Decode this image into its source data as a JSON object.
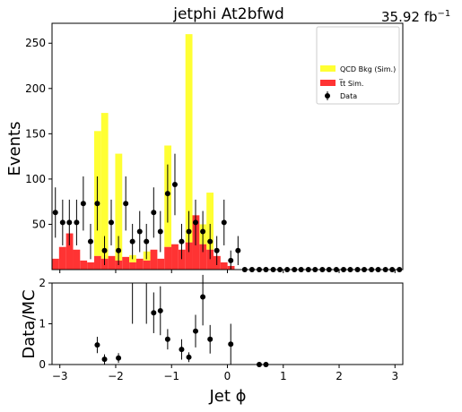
{
  "chart_data": {
    "type": "histogram",
    "title": "jetphi  At2bfwd",
    "luminosity": "35.92 fb",
    "luminosity_exponent": "−1",
    "xlabel": "Jet ϕ",
    "main": {
      "ylabel": "Events",
      "xlim": [
        -3.14,
        3.14
      ],
      "ylim": [
        0,
        272
      ],
      "yticks": [
        50,
        100,
        150,
        200,
        250
      ],
      "xticks": [
        -3,
        -2,
        -1,
        0,
        1,
        2,
        3
      ]
    },
    "ratio": {
      "ylabel": "Data/MC",
      "ylim": [
        0,
        2
      ],
      "yticks": [
        0,
        1,
        2
      ]
    },
    "bins": {
      "start": -3.14,
      "width": 0.1257,
      "count": 50
    },
    "legend": {
      "position": "top-right",
      "entries": [
        {
          "label": "QCD Bkg (Sim.)",
          "color": "#ffff33",
          "kind": "fill"
        },
        {
          "label": "t̅t Sim.",
          "color": "#ff3333",
          "kind": "fill"
        },
        {
          "label": "Data",
          "color": "#000000",
          "kind": "marker"
        }
      ]
    },
    "series": [
      {
        "name": "t̅t Sim.",
        "color": "#ff3333",
        "values": [
          12,
          25,
          40,
          22,
          10,
          8,
          15,
          12,
          15,
          10,
          14,
          8,
          12,
          10,
          22,
          12,
          25,
          28,
          22,
          30,
          60,
          28,
          22,
          15,
          8,
          4,
          0,
          0,
          0,
          0,
          0,
          0,
          0,
          0,
          0,
          0,
          0,
          0,
          0,
          0,
          0,
          0,
          0,
          0,
          0,
          0,
          0,
          0,
          0,
          0
        ]
      },
      {
        "name": "QCD Bkg (Sim.)",
        "color": "#ffff33",
        "values": [
          0,
          0,
          0,
          0,
          0,
          0,
          138,
          161,
          0,
          118,
          0,
          8,
          0,
          10,
          0,
          0,
          112,
          0,
          0,
          230,
          0,
          22,
          63,
          0,
          0,
          0,
          0,
          0,
          0,
          0,
          0,
          0,
          0,
          0,
          0,
          0,
          0,
          0,
          0,
          0,
          0,
          0,
          0,
          0,
          0,
          0,
          0,
          0,
          0,
          0
        ]
      }
    ],
    "data": {
      "name": "Data",
      "x": [
        -3.08,
        -2.95,
        -2.83,
        -2.7,
        -2.58,
        -2.45,
        -2.33,
        -2.2,
        -2.08,
        -1.95,
        -1.82,
        -1.7,
        -1.57,
        -1.45,
        -1.32,
        -1.2,
        -1.07,
        -0.94,
        -0.82,
        -0.69,
        -0.57,
        -0.44,
        -0.31,
        -0.19,
        -0.06,
        0.06,
        0.19,
        0.31,
        0.44,
        0.57,
        0.69,
        0.82,
        0.94,
        1.07,
        1.2,
        1.32,
        1.45,
        1.57,
        1.7,
        1.82,
        1.95,
        2.08,
        2.2,
        2.33,
        2.45,
        2.58,
        2.7,
        2.83,
        2.95,
        3.08
      ],
      "y": [
        63,
        52,
        52,
        52,
        73,
        31,
        73,
        21,
        52,
        21,
        73,
        31,
        42,
        31,
        63,
        42,
        84,
        94,
        31,
        42,
        52,
        42,
        31,
        21,
        52,
        10,
        21,
        0,
        0,
        0,
        0,
        0,
        0,
        0,
        0,
        0,
        0,
        0,
        0,
        0,
        0,
        0,
        0,
        0,
        0,
        0,
        0,
        0,
        0,
        0
      ]
    },
    "ratio_points": {
      "x": [
        -2.33,
        -2.2,
        -1.95,
        -1.32,
        -1.2,
        -1.07,
        -0.82,
        -0.69,
        -0.57,
        -0.44,
        -0.31,
        0.06,
        0.57,
        0.69
      ],
      "y": [
        0.48,
        0.13,
        0.16,
        1.27,
        1.32,
        0.62,
        0.37,
        0.18,
        0.82,
        1.66,
        0.62,
        0.5,
        0.0,
        0.0
      ],
      "err": [
        0.2,
        0.12,
        0.12,
        0.5,
        0.6,
        0.25,
        0.25,
        0.12,
        0.4,
        0.7,
        0.35,
        0.5,
        0,
        0
      ]
    }
  }
}
